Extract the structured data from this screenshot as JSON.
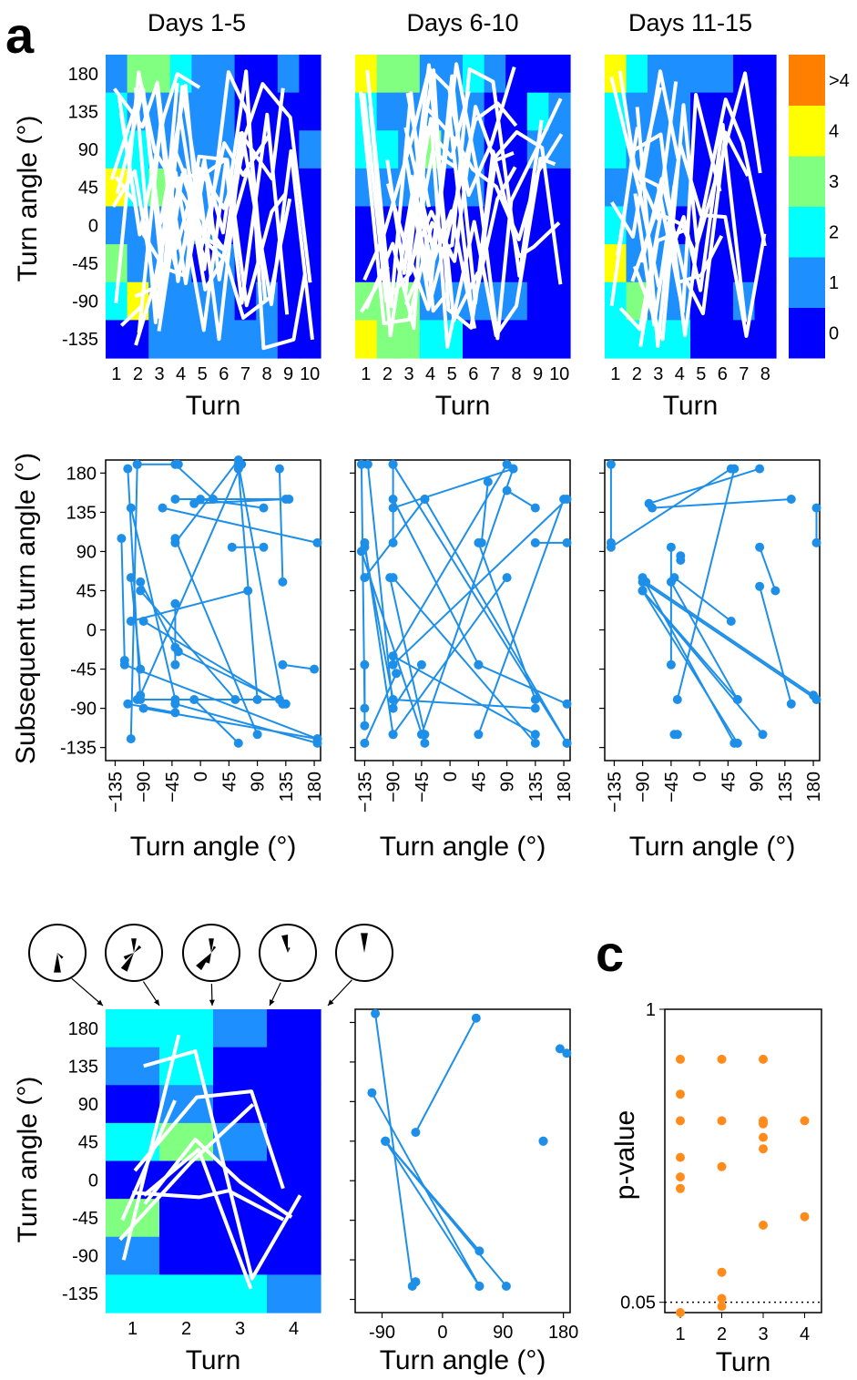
{
  "panel_letters": {
    "a": "a",
    "c": "c"
  },
  "colors": {
    "bin_0": "#0000ff",
    "bin_1": "#1e8fff",
    "bin_2": "#00ffff",
    "bin_3": "#80ff80",
    "bin_4": "#ffff00",
    "bin_gt4": "#ff8000",
    "trajectory": "#ffffff",
    "scatter": "#1e8fe8",
    "pvalue": "#ff8c1a"
  },
  "chart_data": [
    {
      "id": "heat1",
      "type": "heatmap",
      "title": "Days 1-5",
      "xlabel": "Turn",
      "ylabel": "Turn angle (°)",
      "x_ticks": [
        "1",
        "2",
        "3",
        "4",
        "5",
        "6",
        "7",
        "8",
        "9",
        "10"
      ],
      "y_ticks": [
        "180",
        "135",
        "90",
        "45",
        "0",
        "-45",
        "-90",
        "-135"
      ],
      "rows": [
        180,
        135,
        90,
        45,
        0,
        -45,
        -90,
        -135
      ],
      "cells": [
        [
          1,
          3,
          3,
          2,
          1,
          1,
          0,
          0,
          1,
          0
        ],
        [
          2,
          1,
          1,
          1,
          1,
          1,
          0,
          0,
          0,
          0
        ],
        [
          2,
          2,
          1,
          1,
          1,
          1,
          0,
          0,
          0,
          1
        ],
        [
          4,
          2,
          3,
          1,
          1,
          1,
          0,
          0,
          0,
          0
        ],
        [
          1,
          1,
          1,
          1,
          1,
          0,
          0,
          0,
          0,
          0
        ],
        [
          3,
          1,
          1,
          1,
          0,
          1,
          0,
          0,
          0,
          0
        ],
        [
          2,
          4,
          1,
          1,
          1,
          1,
          0,
          1,
          0,
          0
        ],
        [
          0,
          0,
          1,
          1,
          1,
          1,
          1,
          1,
          0,
          0
        ]
      ],
      "colorbar": {
        "labels": [
          "0",
          "1",
          "2",
          "3",
          "4",
          ">4"
        ]
      }
    },
    {
      "id": "heat2",
      "type": "heatmap",
      "title": "Days 6-10",
      "xlabel": "Turn",
      "x_ticks": [
        "1",
        "2",
        "3",
        "4",
        "5",
        "6",
        "7",
        "8",
        "9",
        "10"
      ],
      "rows": [
        180,
        135,
        90,
        45,
        0,
        -45,
        -90,
        -135
      ],
      "cells": [
        [
          4,
          3,
          3,
          1,
          1,
          2,
          1,
          0,
          0,
          0
        ],
        [
          2,
          1,
          1,
          1,
          1,
          1,
          0,
          0,
          2,
          1
        ],
        [
          2,
          2,
          1,
          3,
          1,
          1,
          0,
          0,
          1,
          1
        ],
        [
          1,
          1,
          1,
          1,
          0,
          1,
          0,
          0,
          0,
          0
        ],
        [
          0,
          0,
          0,
          0,
          0,
          0,
          0,
          0,
          0,
          0
        ],
        [
          0,
          0,
          0,
          1,
          0,
          0,
          0,
          0,
          0,
          0
        ],
        [
          3,
          3,
          3,
          1,
          1,
          1,
          1,
          1,
          0,
          0
        ],
        [
          4,
          3,
          3,
          2,
          2,
          0,
          0,
          0,
          0,
          0
        ]
      ]
    },
    {
      "id": "heat3",
      "type": "heatmap",
      "title": "Days 11-15",
      "xlabel": "Turn",
      "x_ticks": [
        "1",
        "2",
        "3",
        "4",
        "5",
        "6",
        "7",
        "8"
      ],
      "rows": [
        180,
        135,
        90,
        45,
        0,
        -45,
        -90,
        -135
      ],
      "cells": [
        [
          4,
          2,
          1,
          1,
          1,
          1,
          0,
          0
        ],
        [
          2,
          1,
          1,
          1,
          0,
          0,
          0,
          0
        ],
        [
          2,
          1,
          1,
          1,
          0,
          0,
          0,
          0
        ],
        [
          1,
          1,
          1,
          1,
          0,
          0,
          0,
          0
        ],
        [
          2,
          1,
          1,
          0,
          0,
          0,
          0,
          0
        ],
        [
          4,
          1,
          1,
          1,
          0,
          0,
          0,
          0
        ],
        [
          2,
          3,
          1,
          1,
          0,
          0,
          1,
          0
        ],
        [
          2,
          2,
          2,
          2,
          0,
          0,
          0,
          0
        ]
      ]
    },
    {
      "id": "scat1",
      "type": "scatter",
      "xlabel": "Turn angle (°)",
      "ylabel": "Subsequent turn angle (°)",
      "x_ticks": [
        "−135",
        "−90",
        "−45",
        "0",
        "45",
        "90",
        "135",
        "180"
      ],
      "y_ticks": [
        "180",
        "135",
        "90",
        "45",
        "0",
        "-45",
        "-90",
        "-135"
      ],
      "xlim": [
        -150,
        190
      ],
      "ylim": [
        -150,
        195
      ],
      "pairs": [
        [
          -125,
          105,
          -120,
          -35
        ],
        [
          -115,
          185,
          -95,
          -80
        ],
        [
          -110,
          60,
          -95,
          -45
        ],
        [
          -100,
          190,
          -35,
          190
        ],
        [
          -110,
          140,
          -40,
          -80
        ],
        [
          -95,
          45,
          55,
          -80
        ],
        [
          -95,
          -75,
          65,
          190
        ],
        [
          -40,
          150,
          140,
          150
        ],
        [
          -40,
          100,
          60,
          195
        ],
        [
          -35,
          -25,
          135,
          -85
        ],
        [
          -120,
          -40,
          185,
          -125
        ],
        [
          -90,
          -90,
          185,
          -125
        ],
        [
          -40,
          -40,
          -40,
          30
        ],
        [
          -40,
          -85,
          185,
          -130
        ],
        [
          -90,
          10,
          130,
          -85
        ],
        [
          -110,
          -125,
          -100,
          190
        ],
        [
          0,
          150,
          100,
          140
        ],
        [
          50,
          95,
          100,
          95
        ],
        [
          125,
          185,
          130,
          55
        ],
        [
          -40,
          190,
          20,
          150
        ],
        [
          60,
          190,
          130,
          -85
        ],
        [
          -95,
          55,
          -40,
          -20
        ],
        [
          185,
          100,
          -60,
          140
        ],
        [
          130,
          -40,
          180,
          -45
        ],
        [
          60,
          -130,
          -10,
          -80
        ],
        [
          90,
          -120,
          -40,
          105
        ],
        [
          -100,
          -80,
          125,
          -80
        ],
        [
          60,
          185,
          90,
          -80
        ],
        [
          -110,
          10,
          75,
          45
        ],
        [
          -115,
          -85,
          -40,
          -95
        ],
        [
          135,
          150,
          -10,
          145
        ]
      ]
    },
    {
      "id": "scat2",
      "type": "scatter",
      "xlabel": "Turn angle (°)",
      "x_ticks": [
        "−135",
        "−90",
        "−45",
        "0",
        "45",
        "90",
        "135",
        "180"
      ],
      "xlim": [
        -150,
        190
      ],
      "ylim": [
        -150,
        195
      ],
      "pairs": [
        [
          -140,
          190,
          -135,
          -90
        ],
        [
          -135,
          -110,
          -135,
          -40
        ],
        [
          -135,
          100,
          -90,
          -120
        ],
        [
          -90,
          190,
          -90,
          100
        ],
        [
          -95,
          60,
          -40,
          -120
        ],
        [
          -90,
          -90,
          -45,
          -40
        ],
        [
          -135,
          95,
          -90,
          -80
        ],
        [
          -90,
          150,
          45,
          -40
        ],
        [
          -90,
          -30,
          135,
          -120
        ],
        [
          -135,
          60,
          -40,
          150
        ],
        [
          -90,
          190,
          185,
          -130
        ],
        [
          -90,
          -80,
          135,
          -90
        ],
        [
          -40,
          150,
          185,
          -130
        ],
        [
          45,
          100,
          135,
          -80
        ],
        [
          90,
          190,
          -90,
          -30
        ],
        [
          185,
          100,
          135,
          100
        ],
        [
          90,
          160,
          135,
          140
        ],
        [
          90,
          60,
          -90,
          -120
        ],
        [
          45,
          -40,
          185,
          -85
        ],
        [
          -130,
          190,
          -90,
          -90
        ],
        [
          -135,
          -130,
          -85,
          -50
        ],
        [
          100,
          185,
          -45,
          -120
        ],
        [
          185,
          150,
          -90,
          -40
        ],
        [
          -90,
          140,
          100,
          185
        ],
        [
          50,
          100,
          60,
          170
        ],
        [
          -90,
          60,
          135,
          -130
        ],
        [
          180,
          150,
          45,
          -120
        ],
        [
          -140,
          90,
          -40,
          -130
        ]
      ]
    },
    {
      "id": "scat3",
      "type": "scatter",
      "xlabel": "Turn angle (°)",
      "x_ticks": [
        "−135",
        "−90",
        "−45",
        "0",
        "45",
        "90",
        "135",
        "180"
      ],
      "xlim": [
        -150,
        190
      ],
      "ylim": [
        -150,
        195
      ],
      "pairs": [
        [
          -140,
          190,
          -140,
          100
        ],
        [
          -140,
          95,
          50,
          185
        ],
        [
          -80,
          145,
          95,
          185
        ],
        [
          -90,
          55,
          185,
          -80
        ],
        [
          -90,
          45,
          60,
          -130
        ],
        [
          -90,
          45,
          100,
          -120
        ],
        [
          -90,
          60,
          55,
          -130
        ],
        [
          -90,
          45,
          60,
          -80
        ],
        [
          -45,
          95,
          -45,
          -40
        ],
        [
          -45,
          55,
          60,
          -80
        ],
        [
          -35,
          -120,
          -40,
          -120
        ],
        [
          95,
          95,
          120,
          45
        ],
        [
          95,
          50,
          145,
          -85
        ],
        [
          -85,
          55,
          180,
          -75
        ],
        [
          -40,
          60,
          50,
          10
        ],
        [
          -75,
          140,
          145,
          150
        ],
        [
          185,
          140,
          185,
          100
        ],
        [
          55,
          185,
          -35,
          -80
        ],
        [
          -30,
          80,
          -30,
          85
        ]
      ]
    },
    {
      "id": "heat4",
      "type": "heatmap",
      "xlabel": "Turn",
      "ylabel": "Turn angle (°)",
      "x_ticks": [
        "1",
        "2",
        "3",
        "4"
      ],
      "y_ticks": [
        "180",
        "135",
        "90",
        "45",
        "0",
        "-45",
        "-90",
        "-135"
      ],
      "rows": [
        180,
        135,
        90,
        45,
        0,
        -45,
        -90,
        -135
      ],
      "cells": [
        [
          2,
          2,
          1,
          0
        ],
        [
          1,
          2,
          0,
          0
        ],
        [
          0,
          1,
          0,
          0
        ],
        [
          2,
          3,
          1,
          0
        ],
        [
          0,
          0,
          0,
          0
        ],
        [
          3,
          0,
          0,
          0
        ],
        [
          1,
          0,
          0,
          0
        ],
        [
          2,
          2,
          2,
          1
        ]
      ]
    },
    {
      "id": "scat4",
      "type": "scatter",
      "xlabel": "Turn angle (°)",
      "x_ticks": [
        "-90",
        "0",
        "90",
        "180"
      ],
      "xlim": [
        -130,
        190
      ],
      "ylim": [
        -150,
        195
      ],
      "pairs": [
        [
          -100,
          190,
          -45,
          -120
        ],
        [
          -105,
          100,
          55,
          -120
        ],
        [
          -85,
          45,
          55,
          -120
        ],
        [
          -85,
          45,
          95,
          -120
        ],
        [
          -85,
          45,
          55,
          -80
        ],
        [
          -40,
          -115,
          -40,
          -115
        ],
        [
          -40,
          55,
          50,
          185
        ],
        [
          175,
          150,
          185,
          145
        ],
        [
          150,
          45,
          150,
          45
        ]
      ]
    },
    {
      "id": "pval",
      "type": "scatter",
      "xlabel": "Turn",
      "ylabel": "p-value",
      "x_ticks": [
        "1",
        "2",
        "3",
        "4"
      ],
      "y_ticks": [
        "1",
        "0.05"
      ],
      "ylog": true,
      "ylim": [
        0.045,
        1.0
      ],
      "points": [
        [
          1,
          0.6
        ],
        [
          1,
          0.42
        ],
        [
          1,
          0.32
        ],
        [
          1,
          0.22
        ],
        [
          1,
          0.18
        ],
        [
          1,
          0.16
        ],
        [
          1,
          0.045
        ],
        [
          2,
          0.6
        ],
        [
          2,
          0.32
        ],
        [
          2,
          0.2
        ],
        [
          2,
          0.068
        ],
        [
          2,
          0.052
        ],
        [
          2,
          0.048
        ],
        [
          3,
          0.6
        ],
        [
          3,
          0.32
        ],
        [
          3,
          0.31
        ],
        [
          3,
          0.27
        ],
        [
          3,
          0.24
        ],
        [
          3,
          0.11
        ],
        [
          4,
          0.32
        ],
        [
          4,
          0.12
        ]
      ]
    }
  ]
}
